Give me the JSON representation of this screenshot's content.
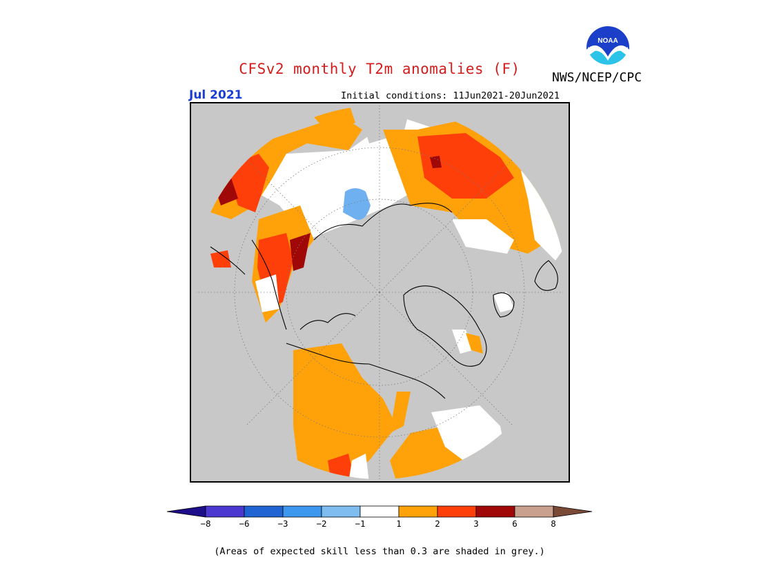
{
  "header": {
    "title": "CFSv2 monthly T2m anomalies (F)",
    "month": "Jul 2021",
    "initial_conditions": "Initial conditions: 11Jun2021-20Jun2021",
    "agency": "NWS/NCEP/CPC",
    "logo_text": "NOAA"
  },
  "colors": {
    "land_grey": "#c8c8c8",
    "title_red": "#d41c1c",
    "month_blue": "#1a3fd0"
  },
  "colorbar": {
    "segments": [
      {
        "color": "#1f0e8c"
      },
      {
        "color": "#4a38d0"
      },
      {
        "color": "#1f64d2"
      },
      {
        "color": "#3d97ee"
      },
      {
        "color": "#7fbcf0"
      },
      {
        "color": "#ffffff"
      },
      {
        "color": "#ffa20a"
      },
      {
        "color": "#ff3f0a"
      },
      {
        "color": "#a00808"
      },
      {
        "color": "#c9a08e"
      },
      {
        "color": "#7a4a36"
      }
    ],
    "labels": [
      "−8",
      "−6",
      "−3",
      "−2",
      "−1",
      "1",
      "2",
      "3",
      "6",
      "8"
    ]
  },
  "footnote": "(Areas of expected skill less than 0.3 are shaded in grey.)"
}
